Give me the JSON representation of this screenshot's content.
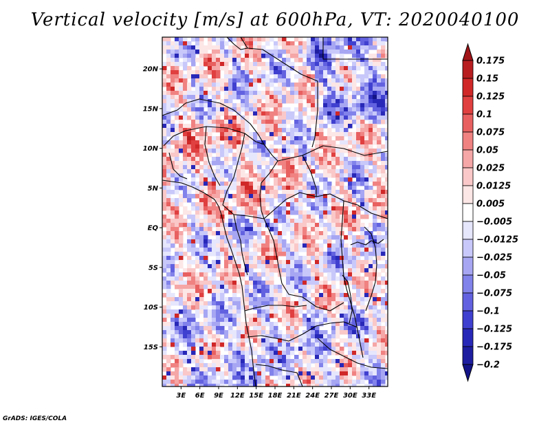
{
  "title": "Vertical velocity [m/s] at 600hPa, VT: 2020040100",
  "credit": "GrADS: IGES/COLA",
  "map": {
    "variable": "Vertical velocity",
    "units": "m/s",
    "level": "600hPa",
    "valid_time": "2020040100",
    "lon_range": [
      0,
      36
    ],
    "lat_range": [
      -20,
      24
    ],
    "lat_ticks": [
      {
        "value": 20,
        "label": "20N"
      },
      {
        "value": 15,
        "label": "15N"
      },
      {
        "value": 10,
        "label": "10N"
      },
      {
        "value": 5,
        "label": "5N"
      },
      {
        "value": 0,
        "label": "EQ"
      },
      {
        "value": -5,
        "label": "5S"
      },
      {
        "value": -10,
        "label": "10S"
      },
      {
        "value": -15,
        "label": "15S"
      }
    ],
    "lon_ticks": [
      {
        "value": 3,
        "label": "3E"
      },
      {
        "value": 6,
        "label": "6E"
      },
      {
        "value": 9,
        "label": "9E"
      },
      {
        "value": 12,
        "label": "12E"
      },
      {
        "value": 15,
        "label": "15E"
      },
      {
        "value": 18,
        "label": "18E"
      },
      {
        "value": 21,
        "label": "21E"
      },
      {
        "value": 24,
        "label": "24E"
      },
      {
        "value": 27,
        "label": "27E"
      },
      {
        "value": 30,
        "label": "30E"
      },
      {
        "value": 33,
        "label": "33E"
      }
    ]
  },
  "colorbar": {
    "labels": [
      "0.175",
      "0.15",
      "0.125",
      "0.1",
      "0.075",
      "0.05",
      "0.025",
      "0.0125",
      "0.005",
      "−0.005",
      "−0.0125",
      "−0.025",
      "−0.05",
      "−0.075",
      "−0.1",
      "−0.125",
      "−0.175",
      "−0.2"
    ],
    "colors": [
      "#a01418",
      "#b81e20",
      "#d02828",
      "#e04040",
      "#e86060",
      "#f08282",
      "#f5a6a6",
      "#fac8c8",
      "#fde6e6",
      "#ffffff",
      "#e6e6fd",
      "#c8c8fa",
      "#a6a6f3",
      "#8282eb",
      "#6262e0",
      "#4040d0",
      "#2828b8",
      "#1e1ea0",
      "#141488"
    ]
  }
}
